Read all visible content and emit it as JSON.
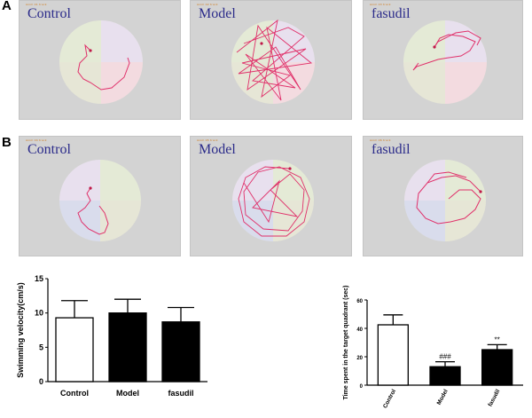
{
  "figure": {
    "panel_a_label": "A",
    "panel_b_label": "B",
    "rows": [
      {
        "tiles": [
          {
            "label": "Control",
            "tiny": "Anim 01 track"
          },
          {
            "label": "Model",
            "tiny": "Anim 02 track"
          },
          {
            "label": "fasudil",
            "tiny": "Anim 03 track"
          }
        ]
      },
      {
        "tiles": [
          {
            "label": "Control",
            "tiny": "Anim 04 track"
          },
          {
            "label": "Model",
            "tiny": "Anim 05 track"
          },
          {
            "label": "fasudil",
            "tiny": "Anim 06 track"
          }
        ]
      }
    ],
    "colors": {
      "track": "#e0306a",
      "pool_bg": "#dcdcd2",
      "q_pink": "#f3dbe0",
      "q_green": "#e4ead6",
      "q_blue": "#d9dcec",
      "q_lav": "#e8e0ee",
      "label": "#2b2b8a"
    }
  },
  "chart_data": [
    {
      "type": "bar",
      "title": "",
      "xlabel": "",
      "ylabel": "Swimming velocity(cm/s)",
      "categories": [
        "Control",
        "Model",
        "fasudil"
      ],
      "values": [
        9.3,
        10.0,
        8.7
      ],
      "errors": [
        2.5,
        2.0,
        2.1
      ],
      "fills": [
        "white",
        "black",
        "black"
      ],
      "ylim": [
        0,
        15
      ],
      "yticks": [
        "0",
        "5",
        "10",
        "15"
      ],
      "annotations": [
        "",
        "",
        ""
      ]
    },
    {
      "type": "bar",
      "title": "",
      "xlabel": "",
      "ylabel": "Time spent in the target quadrant (sec)",
      "categories": [
        "Control",
        "Model",
        "fasudil"
      ],
      "values": [
        42.5,
        13.0,
        25.0
      ],
      "errors": [
        7.0,
        3.5,
        3.5
      ],
      "fills": [
        "white",
        "black",
        "black"
      ],
      "ylim": [
        0,
        60
      ],
      "yticks": [
        "0",
        "20",
        "40",
        "60"
      ],
      "annotations": [
        "",
        "###",
        "**"
      ]
    }
  ]
}
